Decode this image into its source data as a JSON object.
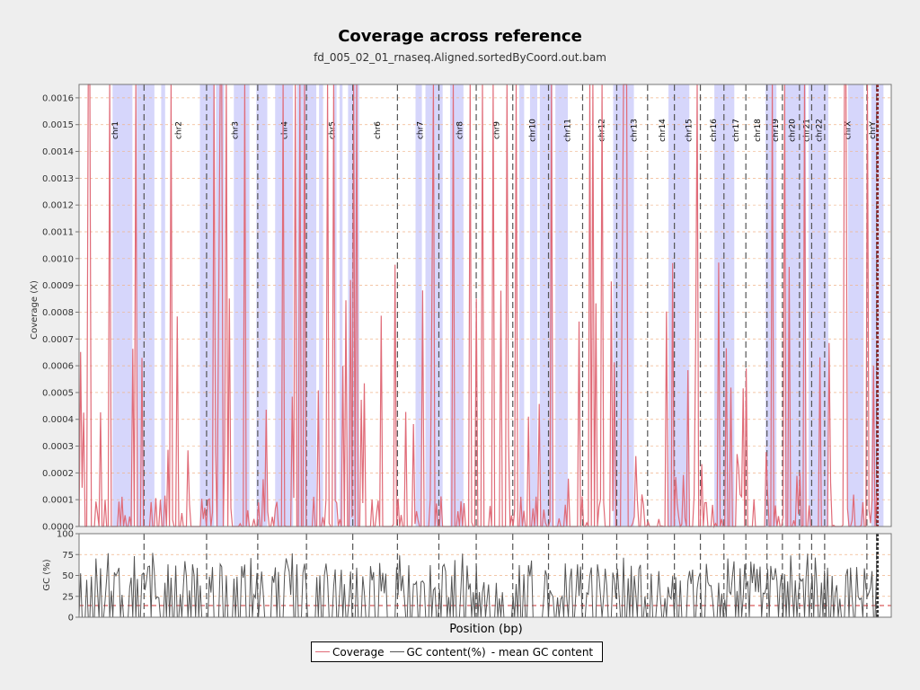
{
  "header": {
    "title": "Coverage across reference",
    "subtitle": "fd_005_02_01_rnaseq.Aligned.sortedByCoord.out.bam"
  },
  "colors": {
    "coverage": "#e06b78",
    "gc": "#555555",
    "mean_gc": "#d03030",
    "band": "#d6d6fb",
    "grid": "#f0b48a",
    "chrom_line": "#555555"
  },
  "chart_data": [
    {
      "type": "line",
      "panel": "coverage",
      "ylabel": "Coverage (X)",
      "ylim": [
        0,
        0.00165
      ],
      "yticks": [
        "0.0000",
        "0.0001",
        "0.0002",
        "0.0003",
        "0.0004",
        "0.0005",
        "0.0006",
        "0.0007",
        "0.0008",
        "0.0009",
        "0.0010",
        "0.0011",
        "0.0012",
        "0.0013",
        "0.0014",
        "0.0015",
        "0.0016"
      ],
      "chromosomes": [
        {
          "name": "chr1",
          "end": 0.08
        },
        {
          "name": "chr2",
          "end": 0.157
        },
        {
          "name": "chr3",
          "end": 0.22
        },
        {
          "name": "chr4",
          "end": 0.28
        },
        {
          "name": "chr5",
          "end": 0.337
        },
        {
          "name": "chr6",
          "end": 0.392
        },
        {
          "name": "chr7",
          "end": 0.443
        },
        {
          "name": "chr8",
          "end": 0.489
        },
        {
          "name": "chr9",
          "end": 0.534
        },
        {
          "name": "chr10",
          "end": 0.578
        },
        {
          "name": "chr11",
          "end": 0.62
        },
        {
          "name": "chr12",
          "end": 0.662
        },
        {
          "name": "chr13",
          "end": 0.7
        },
        {
          "name": "chr14",
          "end": 0.733
        },
        {
          "name": "chr15",
          "end": 0.765
        },
        {
          "name": "chr16",
          "end": 0.794
        },
        {
          "name": "chr17",
          "end": 0.821
        },
        {
          "name": "chr18",
          "end": 0.847
        },
        {
          "name": "chr19",
          "end": 0.866
        },
        {
          "name": "chr20",
          "end": 0.887
        },
        {
          "name": "chr21",
          "end": 0.902
        },
        {
          "name": "chr22",
          "end": 0.918
        },
        {
          "name": "chrX",
          "end": 0.97
        },
        {
          "name": "chrY",
          "end": 0.982
        }
      ],
      "series": [
        {
          "name": "Coverage",
          "seed": 7,
          "peak_max": 0.00165
        }
      ],
      "grid": true
    },
    {
      "type": "line",
      "panel": "gc",
      "ylabel": "GC (%)",
      "ylim": [
        0,
        100
      ],
      "yticks": [
        "0",
        "25",
        "50",
        "75",
        "100"
      ],
      "series": [
        {
          "name": "GC content(%)",
          "seed": 13
        }
      ],
      "mean_gc": 14,
      "grid": true
    }
  ],
  "xlabel": "Position (bp)",
  "legend": {
    "items": [
      {
        "label": "Coverage"
      },
      {
        "label": "GC content(%)"
      },
      {
        "label": "- mean GC content"
      }
    ],
    "position": "bottom-center"
  }
}
